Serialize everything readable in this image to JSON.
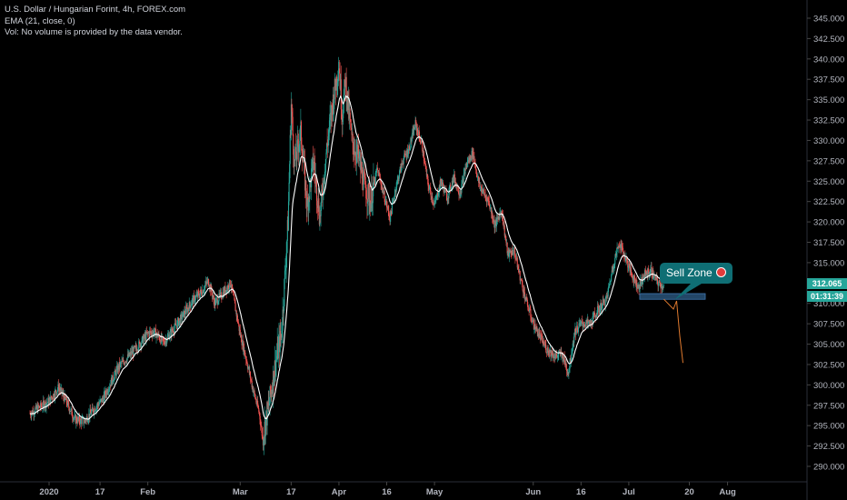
{
  "legend": {
    "line1": "U.S. Dollar / Hungarian Forint, 4h, FOREX.com",
    "line2": "EMA (21, close, 0)",
    "line3": "Vol: No volume is provided by the data vendor."
  },
  "colors": {
    "background": "#000000",
    "up": "#26a69a",
    "down": "#ef5350",
    "ema": "#ffffff",
    "zone": "#2f5d8a",
    "callout": "#0f6e74",
    "arrow": "#e07a2e",
    "last_price_tag": "#26a69a",
    "countdown_tag": "#26a69a"
  },
  "price_tags": {
    "last_price": "312.065",
    "countdown": "01:31:39"
  },
  "callout": {
    "label": "Sell Zone",
    "icon": "bear-icon"
  },
  "chart_data": {
    "type": "candlestick",
    "symbol": "USDHUF",
    "interval": "4h",
    "y_axis": {
      "ticks": [
        "345.000",
        "342.500",
        "340.000",
        "337.500",
        "335.000",
        "332.500",
        "330.000",
        "327.500",
        "325.000",
        "322.500",
        "320.000",
        "317.500",
        "315.000",
        "312.500",
        "310.000",
        "307.500",
        "305.000",
        "302.500",
        "300.000",
        "297.500",
        "295.000",
        "292.500",
        "290.000"
      ],
      "range": [
        288.5,
        346.5
      ],
      "position": "right"
    },
    "x_axis": {
      "ticks": [
        {
          "label": "2020",
          "date": "2020-01-01"
        },
        {
          "label": "17",
          "date": "2020-01-17"
        },
        {
          "label": "Feb",
          "date": "2020-02-01"
        },
        {
          "label": "Mar",
          "date": "2020-03-01"
        },
        {
          "label": "17",
          "date": "2020-03-17"
        },
        {
          "label": "Apr",
          "date": "2020-04-01"
        },
        {
          "label": "16",
          "date": "2020-04-16"
        },
        {
          "label": "May",
          "date": "2020-05-01"
        },
        {
          "label": "Jun",
          "date": "2020-06-01"
        },
        {
          "label": "16",
          "date": "2020-06-16"
        },
        {
          "label": "Jul",
          "date": "2020-07-01"
        },
        {
          "label": "20",
          "date": "2020-07-20"
        },
        {
          "label": "Aug",
          "date": "2020-08-01"
        }
      ]
    },
    "close_path": [
      [
        "2019-12-26",
        296.5
      ],
      [
        "2020-01-01",
        298.0
      ],
      [
        "2020-01-04",
        299.7
      ],
      [
        "2020-01-07",
        297.5
      ],
      [
        "2020-01-09",
        295.8
      ],
      [
        "2020-01-12",
        295.5
      ],
      [
        "2020-01-15",
        297.0
      ],
      [
        "2020-01-18",
        298.3
      ],
      [
        "2020-01-20",
        300.0
      ],
      [
        "2020-01-23",
        302.3
      ],
      [
        "2020-01-26",
        303.5
      ],
      [
        "2020-01-29",
        304.8
      ],
      [
        "2020-02-01",
        306.3
      ],
      [
        "2020-02-03",
        306.5
      ],
      [
        "2020-02-06",
        305.2
      ],
      [
        "2020-02-09",
        306.8
      ],
      [
        "2020-02-12",
        308.5
      ],
      [
        "2020-02-15",
        310.3
      ],
      [
        "2020-02-18",
        311.5
      ],
      [
        "2020-02-20",
        312.8
      ],
      [
        "2020-02-22",
        310.0
      ],
      [
        "2020-02-25",
        311.5
      ],
      [
        "2020-02-27",
        312.5
      ],
      [
        "2020-03-01",
        306.2
      ],
      [
        "2020-03-03",
        303.0
      ],
      [
        "2020-03-05",
        299.5
      ],
      [
        "2020-03-07",
        296.5
      ],
      [
        "2020-03-08",
        293.5
      ],
      [
        "2020-03-10",
        297.5
      ],
      [
        "2020-03-12",
        302.5
      ],
      [
        "2020-03-14",
        306.5
      ],
      [
        "2020-03-16",
        320.0
      ],
      [
        "2020-03-17",
        334.5
      ],
      [
        "2020-03-18",
        327.0
      ],
      [
        "2020-03-20",
        331.0
      ],
      [
        "2020-03-22",
        322.0
      ],
      [
        "2020-03-24",
        327.5
      ],
      [
        "2020-03-26",
        320.5
      ],
      [
        "2020-03-28",
        328.5
      ],
      [
        "2020-03-30",
        334.5
      ],
      [
        "2020-04-01",
        339.5
      ],
      [
        "2020-04-02",
        333.0
      ],
      [
        "2020-04-03",
        337.5
      ],
      [
        "2020-04-05",
        330.0
      ],
      [
        "2020-04-07",
        328.0
      ],
      [
        "2020-04-09",
        324.5
      ],
      [
        "2020-04-11",
        322.5
      ],
      [
        "2020-04-13",
        326.5
      ],
      [
        "2020-04-15",
        323.5
      ],
      [
        "2020-04-17",
        320.5
      ],
      [
        "2020-04-19",
        324.5
      ],
      [
        "2020-04-21",
        327.5
      ],
      [
        "2020-04-23",
        329.0
      ],
      [
        "2020-04-25",
        332.0
      ],
      [
        "2020-04-27",
        329.5
      ],
      [
        "2020-04-29",
        324.5
      ],
      [
        "2020-05-01",
        322.0
      ],
      [
        "2020-05-03",
        325.0
      ],
      [
        "2020-05-05",
        323.0
      ],
      [
        "2020-05-07",
        325.5
      ],
      [
        "2020-05-09",
        323.5
      ],
      [
        "2020-05-11",
        327.0
      ],
      [
        "2020-05-13",
        328.5
      ],
      [
        "2020-05-15",
        324.5
      ],
      [
        "2020-05-18",
        322.5
      ],
      [
        "2020-05-20",
        319.5
      ],
      [
        "2020-05-22",
        321.5
      ],
      [
        "2020-05-24",
        316.0
      ],
      [
        "2020-05-26",
        316.5
      ],
      [
        "2020-05-28",
        313.0
      ],
      [
        "2020-05-30",
        310.0
      ],
      [
        "2020-06-01",
        307.5
      ],
      [
        "2020-06-03",
        306.0
      ],
      [
        "2020-06-05",
        304.5
      ],
      [
        "2020-06-08",
        303.5
      ],
      [
        "2020-06-10",
        303.8
      ],
      [
        "2020-06-12",
        301.5
      ],
      [
        "2020-06-14",
        306.5
      ],
      [
        "2020-06-16",
        307.5
      ],
      [
        "2020-06-19",
        307.5
      ],
      [
        "2020-06-21",
        309.0
      ],
      [
        "2020-06-24",
        310.5
      ],
      [
        "2020-06-26",
        314.5
      ],
      [
        "2020-06-28",
        317.5
      ],
      [
        "2020-06-30",
        315.5
      ],
      [
        "2020-07-02",
        313.5
      ],
      [
        "2020-07-04",
        312.0
      ],
      [
        "2020-07-06",
        313.5
      ],
      [
        "2020-07-08",
        314.0
      ],
      [
        "2020-07-10",
        312.5
      ],
      [
        "2020-07-12",
        312.065
      ]
    ],
    "ema_period": 21,
    "sell_zone": {
      "date_start": "2020-07-01",
      "date_end": "2020-07-25",
      "price_low": 310.5,
      "price_high": 311.2
    },
    "projection": [
      [
        "2020-07-12",
        310.5
      ],
      [
        "2020-07-15",
        309.3
      ],
      [
        "2020-07-16",
        310.3
      ],
      [
        "2020-07-17",
        306.0
      ],
      [
        "2020-07-18",
        302.7
      ]
    ]
  }
}
